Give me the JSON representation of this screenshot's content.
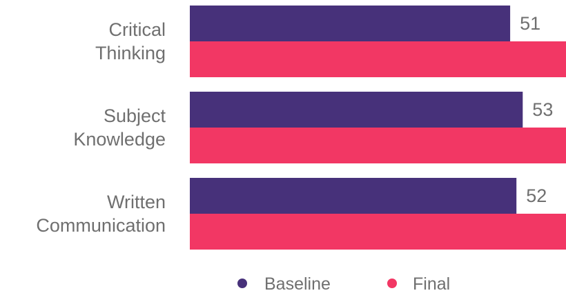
{
  "chart_data": {
    "type": "bar",
    "orientation": "horizontal",
    "categories": [
      [
        "Critical",
        "Thinking"
      ],
      [
        "Subject",
        "Knowledge"
      ],
      [
        "Written",
        "Communication"
      ]
    ],
    "series": [
      {
        "name": "Baseline",
        "color": "#47317a",
        "values": [
          51,
          53,
          52
        ]
      },
      {
        "name": "Final",
        "color": "#f23764",
        "values": [
          62,
          64,
          63
        ]
      }
    ],
    "xlim": [
      0,
      70
    ],
    "grid": false,
    "legend_position": "bottom"
  }
}
